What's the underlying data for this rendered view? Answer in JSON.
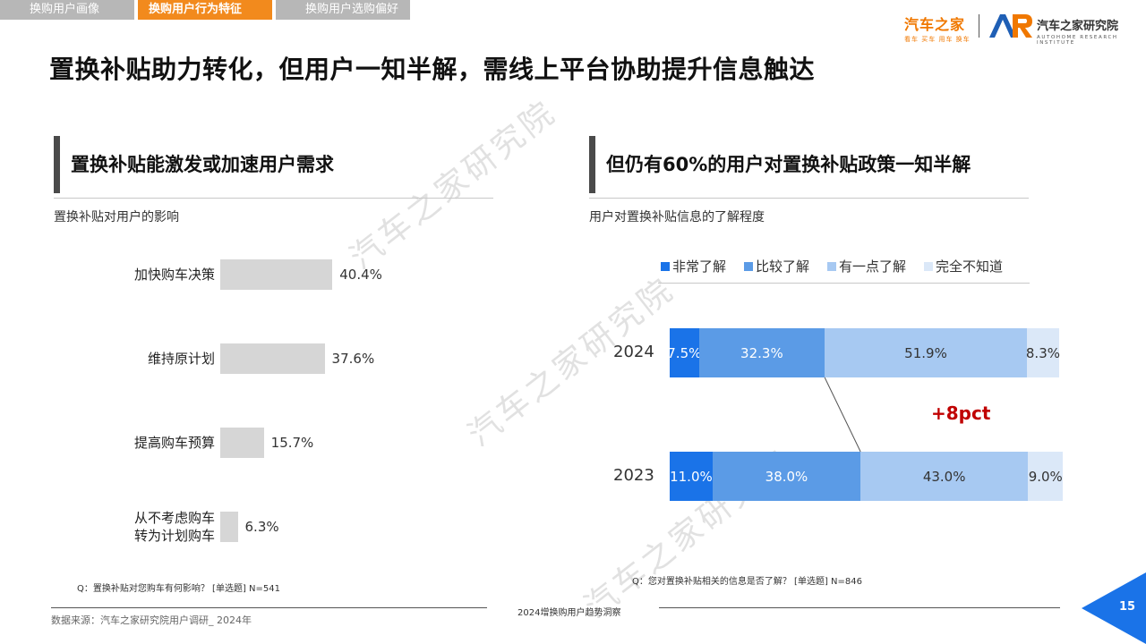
{
  "tabs": [
    {
      "label": "换购用户画像",
      "active": false
    },
    {
      "label": "换购用户行为特征",
      "active": true
    },
    {
      "label": "换购用户选购偏好",
      "active": false
    }
  ],
  "logo": {
    "brand": "汽车之家",
    "slogan": "看车 买车 用车 换车",
    "research_name": "汽车之家研究院",
    "research_sub": "AUTOHOME RESEARCH INSTITUTE",
    "brand_color": "#f07800",
    "ar_color": "#1f5fb5"
  },
  "main_title": "置换补贴助力转化，但用户一知半解，需线上平台协助提升信息触达",
  "left": {
    "heading": "置换补贴能激发或加速用户需求",
    "subtitle": "置换补贴对用户的影响",
    "question": "Q：置换补贴对您购车有何影响？ [单选题] N=541"
  },
  "right": {
    "heading": "但仍有60%的用户对置换补贴政策一知半解",
    "subtitle": "用户对置换补贴信息的了解程度",
    "delta": "+8pct",
    "question": "Q：您对置换补贴相关的信息是否了解？ [单选题] N=846"
  },
  "chart_data": [
    {
      "type": "bar",
      "orientation": "horizontal",
      "categories": [
        "加快购车决策",
        "维持原计划",
        "提高购车预算",
        "从不考虑购车\n转为计划购车"
      ],
      "values": [
        40.4,
        37.6,
        15.7,
        6.3
      ],
      "value_labels": [
        "40.4%",
        "37.6%",
        "15.7%",
        "6.3%"
      ],
      "color": "#d6d6d6",
      "xlim": [
        0,
        100
      ]
    },
    {
      "type": "bar",
      "orientation": "horizontal",
      "stacked": true,
      "categories": [
        "2024",
        "2023"
      ],
      "series": [
        {
          "name": "非常了解",
          "values": [
            7.5,
            11.0
          ],
          "labels": [
            "7.5%",
            "11.0%"
          ],
          "color": "#1a73e8",
          "text_color": "#ffffff"
        },
        {
          "name": "比较了解",
          "values": [
            32.3,
            38.0
          ],
          "labels": [
            "32.3%",
            "38.0%"
          ],
          "color": "#5b9be6",
          "text_color": "#ffffff"
        },
        {
          "name": "有一点了解",
          "values": [
            51.9,
            43.0
          ],
          "labels": [
            "51.9%",
            "43.0%"
          ],
          "color": "#a7c9f2",
          "text_color": "#333333"
        },
        {
          "name": "完全不知道",
          "values": [
            8.3,
            9.0
          ],
          "labels": [
            "8.3%",
            "9.0%"
          ],
          "color": "#dbe8f8",
          "text_color": "#333333"
        }
      ],
      "legend": "top",
      "xlim": [
        0,
        100
      ]
    }
  ],
  "footer": {
    "source": "数据来源：汽车之家研究院用户调研_ 2024年",
    "report_name": "2024增换购用户趋势洞察",
    "page_number": "15"
  },
  "watermark": "汽车之家研究院"
}
